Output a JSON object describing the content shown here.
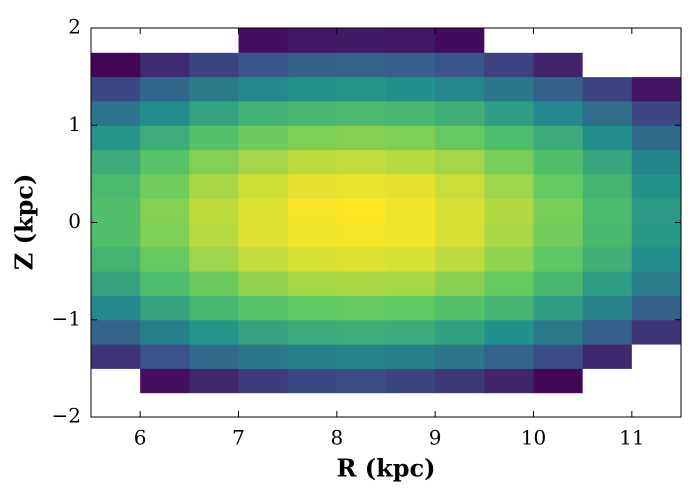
{
  "chart_data": {
    "type": "hist2d",
    "x_label": "R (kpc)",
    "y_label": "Z (kpc)",
    "xlim": [
      5.5,
      11.5
    ],
    "ylim": [
      -2,
      2
    ],
    "xticks": [
      6,
      7,
      8,
      9,
      10,
      11
    ],
    "yticks": [
      {
        "value": -2,
        "label": "−2"
      },
      {
        "value": -1,
        "label": "−1"
      },
      0,
      1,
      2
    ],
    "x_bins": [
      5.5,
      6,
      6.5,
      7,
      7.5,
      8,
      8.5,
      9,
      9.5,
      10,
      10.5,
      11,
      11.5
    ],
    "y_bins": [
      -2,
      -1.75,
      -1.5,
      -1.25,
      -1,
      -0.75,
      -0.5,
      -0.25,
      0,
      0.25,
      0.5,
      0.75,
      1,
      1.25,
      1.5,
      1.75,
      2
    ],
    "colors": [
      "#440154",
      "#3b528b",
      "#21918c",
      "#5ec962",
      "#fde725"
    ],
    "values": [
      [
        0,
        0,
        0,
        0,
        0,
        0,
        0,
        0,
        0,
        0,
        0,
        0
      ],
      [
        0,
        0.04,
        0.12,
        0.18,
        0.22,
        0.23,
        0.21,
        0.17,
        0.11,
        0.02,
        0,
        0
      ],
      [
        0.15,
        0.25,
        0.34,
        0.4,
        0.43,
        0.44,
        0.43,
        0.39,
        0.32,
        0.23,
        0.12,
        0
      ],
      [
        0.32,
        0.43,
        0.52,
        0.58,
        0.61,
        0.62,
        0.61,
        0.57,
        0.5,
        0.41,
        0.3,
        0.16
      ],
      [
        0.47,
        0.58,
        0.66,
        0.72,
        0.75,
        0.76,
        0.75,
        0.71,
        0.65,
        0.56,
        0.44,
        0.31
      ],
      [
        0.58,
        0.69,
        0.77,
        0.83,
        0.86,
        0.87,
        0.86,
        0.82,
        0.76,
        0.67,
        0.55,
        0.42
      ],
      [
        0.65,
        0.76,
        0.85,
        0.91,
        0.94,
        0.95,
        0.94,
        0.9,
        0.83,
        0.74,
        0.63,
        0.49
      ],
      [
        0.7,
        0.8,
        0.89,
        0.95,
        0.98,
        0.99,
        0.98,
        0.94,
        0.87,
        0.78,
        0.67,
        0.53
      ],
      [
        0.7,
        0.81,
        0.9,
        0.95,
        0.99,
        1.0,
        0.98,
        0.94,
        0.88,
        0.79,
        0.68,
        0.54
      ],
      [
        0.68,
        0.78,
        0.87,
        0.93,
        0.96,
        0.97,
        0.96,
        0.92,
        0.85,
        0.76,
        0.65,
        0.51
      ],
      [
        0.61,
        0.72,
        0.81,
        0.86,
        0.9,
        0.91,
        0.89,
        0.86,
        0.79,
        0.7,
        0.59,
        0.45
      ],
      [
        0.52,
        0.62,
        0.71,
        0.77,
        0.8,
        0.81,
        0.8,
        0.76,
        0.69,
        0.61,
        0.49,
        0.35
      ],
      [
        0.39,
        0.49,
        0.58,
        0.64,
        0.67,
        0.68,
        0.67,
        0.63,
        0.56,
        0.47,
        0.36,
        0.22
      ],
      [
        0.22,
        0.33,
        0.41,
        0.47,
        0.51,
        0.52,
        0.5,
        0.46,
        0.4,
        0.31,
        0.2,
        0.06
      ],
      [
        0.02,
        0.13,
        0.21,
        0.27,
        0.31,
        0.32,
        0.3,
        0.26,
        0.2,
        0.11,
        0,
        0
      ],
      [
        0,
        0,
        0,
        0.04,
        0.07,
        0.08,
        0.07,
        0.03,
        0,
        0,
        0,
        0
      ]
    ]
  }
}
